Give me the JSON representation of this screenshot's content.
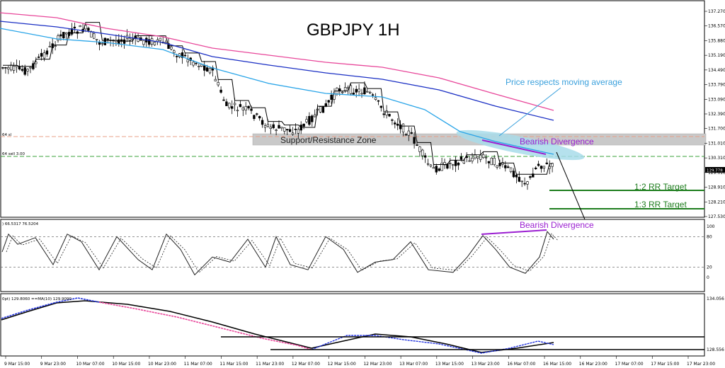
{
  "chart_data": {
    "type": "candlestick",
    "title": "GBPJPY 1H",
    "price_axis": {
      "ticks": [
        "137.270",
        "136.570",
        "135.880",
        "135.190",
        "134.490",
        "133.790",
        "133.090",
        "132.390",
        "131.700",
        "131.010",
        "130.310",
        "129.610",
        "128.910",
        "128.210",
        "127.530"
      ],
      "current_price": "129.778",
      "ylim": [
        127.53,
        137.27
      ]
    },
    "time_axis": {
      "labels": [
        "9 Mar 15:00",
        "9 Mar 23:00",
        "10 Mar 07:00",
        "10 Mar 15:00",
        "10 Mar 23:00",
        "11 Mar 07:00",
        "11 Mar 15:00",
        "11 Mar 23:00",
        "12 Mar 07:00",
        "12 Mar 15:00",
        "12 Mar 23:00",
        "13 Mar 07:00",
        "13 Mar 15:00",
        "13 Mar 23:00",
        "16 Mar 07:00",
        "16 Mar 15:00",
        "16 Mar 23:00",
        "17 Mar 07:00",
        "17 Mar 15:00",
        "17 Mar 23:00"
      ]
    },
    "level_labels": {
      "resistance": "64 sl",
      "entry": "64 sell 3.00"
    },
    "annotations": {
      "zone": "Support/Resistance Zone",
      "ma_note": "Price respects moving average",
      "bearish_price": "Bearish Divergence",
      "bearish_osc": "Bearish Divergence",
      "target1": "1:2 RR Target",
      "target2": "1:3 RR Target"
    },
    "oscillator": {
      "header": ") 66.5317 76.5204",
      "ticks": [
        "100",
        "80",
        "20",
        "0"
      ],
      "levels": [
        80,
        20
      ],
      "ylim": [
        0,
        100
      ]
    },
    "lower_panel": {
      "header": "0pt) 129.8060  ==MA(10) 129.9090",
      "ticks": [
        "134.056",
        "128.556"
      ]
    },
    "colors": {
      "ma_pink": "#e8479a",
      "ma_blue": "#1a2fc4",
      "ma_light": "#2aa5e8",
      "stop_line": "#e8a088",
      "entry_line": "#3aa33a",
      "target_line": "#1e7d1e",
      "zone_fill": "#c8c8c8",
      "bubble": "#a8dcea",
      "divergence": "#9b1fd1",
      "annotation_blue": "#3aa0dc"
    }
  }
}
